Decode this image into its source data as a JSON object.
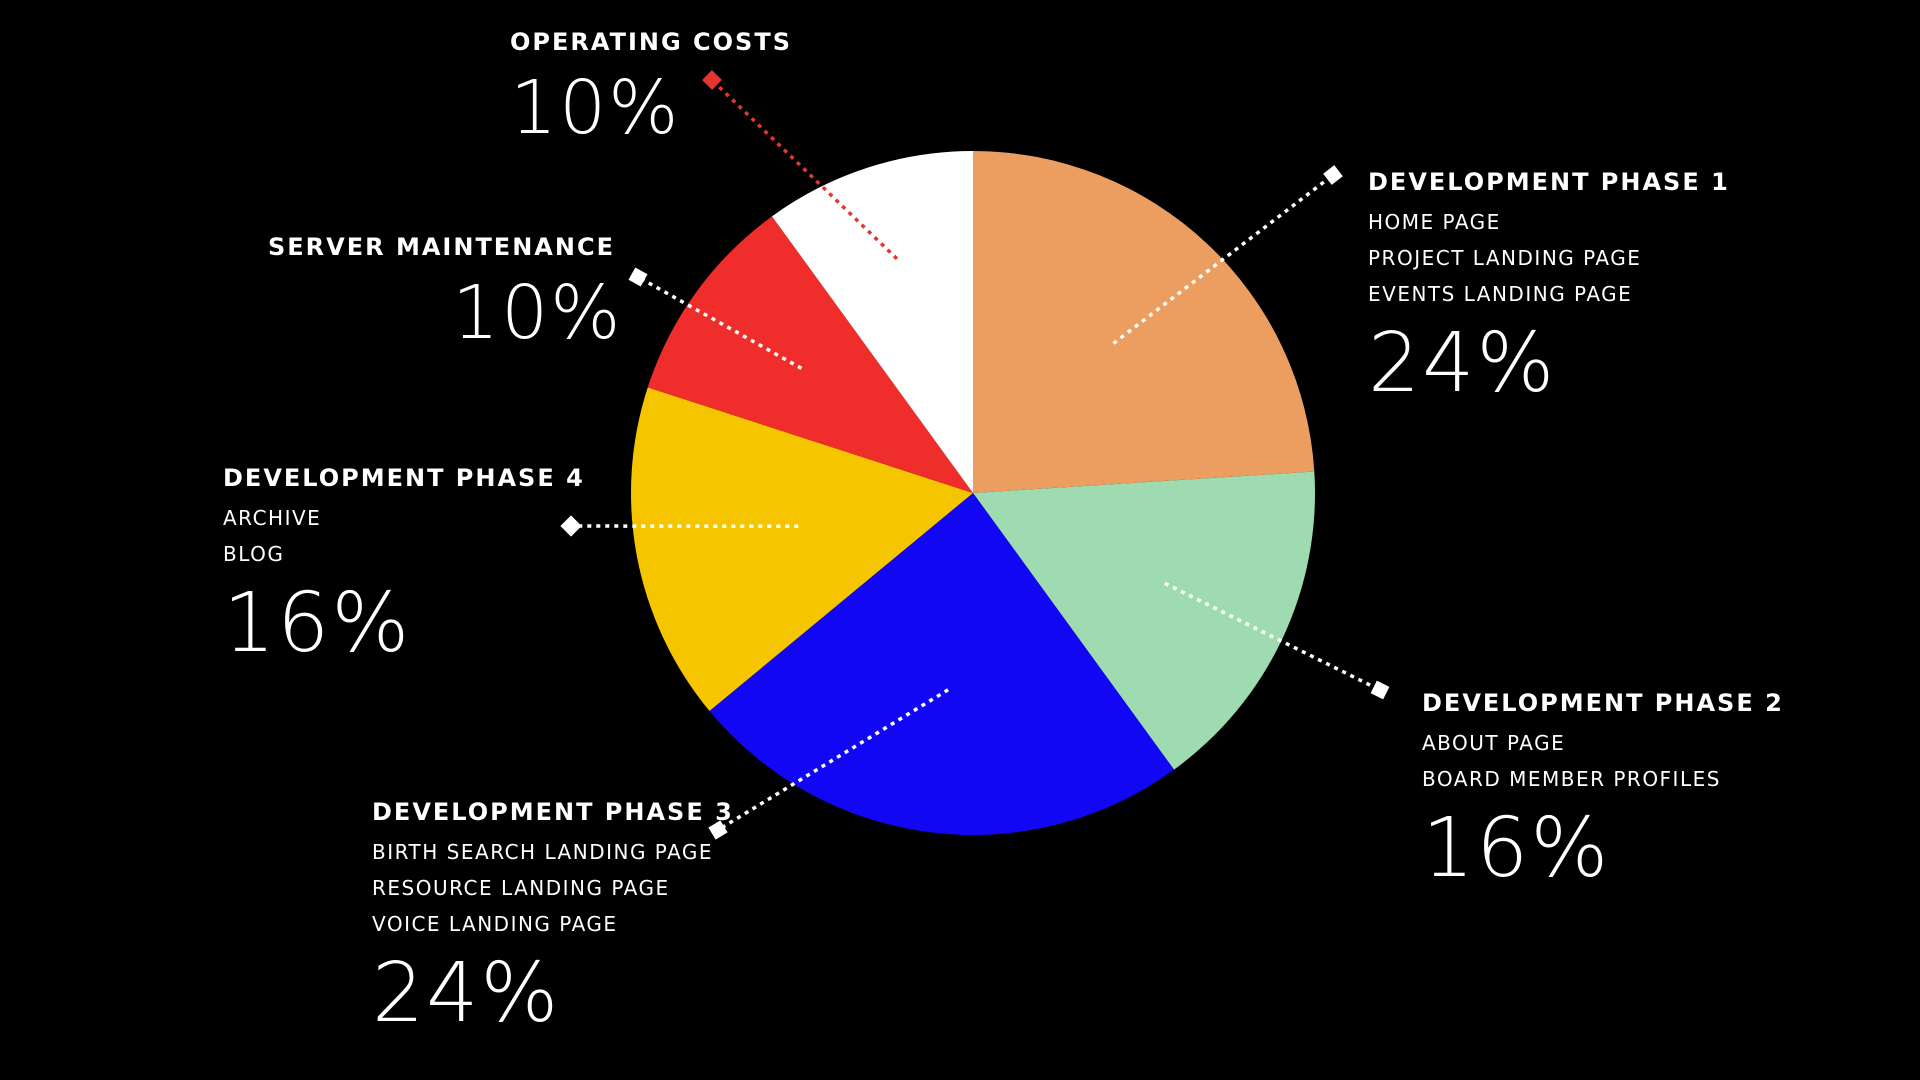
{
  "chart_data": {
    "type": "pie",
    "title": "",
    "slices": [
      {
        "key": "phase1",
        "label": "DEVELOPMENT PHASE 1",
        "items": [
          "HOME PAGE",
          "PROJECT LANDING PAGE",
          "EVENTS LANDING PAGE"
        ],
        "value": 24,
        "value_label": "24%",
        "color": "#EC9E60"
      },
      {
        "key": "phase2",
        "label": "DEVELOPMENT PHASE 2",
        "items": [
          "ABOUT PAGE",
          "BOARD MEMBER PROFILES"
        ],
        "value": 16,
        "value_label": "16%",
        "color": "#9FDBB0"
      },
      {
        "key": "phase3",
        "label": "DEVELOPMENT PHASE 3",
        "items": [
          "BIRTH SEARCH LANDING PAGE",
          "RESOURCE LANDING PAGE",
          "VOICE LANDING PAGE"
        ],
        "value": 24,
        "value_label": "24%",
        "color": "#1207F5"
      },
      {
        "key": "phase4",
        "label": "DEVELOPMENT PHASE 4",
        "items": [
          "ARCHIVE",
          "BLOG"
        ],
        "value": 16,
        "value_label": "16%",
        "color": "#F5C600"
      },
      {
        "key": "server",
        "label": "SERVER MAINTENANCE",
        "items": [],
        "value": 10,
        "value_label": "10%",
        "color": "#EF2D2A"
      },
      {
        "key": "operating",
        "label": "OPERATING COSTS",
        "items": [],
        "value": 10,
        "value_label": "10%",
        "color": "#FFFFFF"
      }
    ],
    "leader_colors": {
      "default": "#FFFFFF",
      "operating": "#E53530"
    },
    "background": "#000000"
  }
}
